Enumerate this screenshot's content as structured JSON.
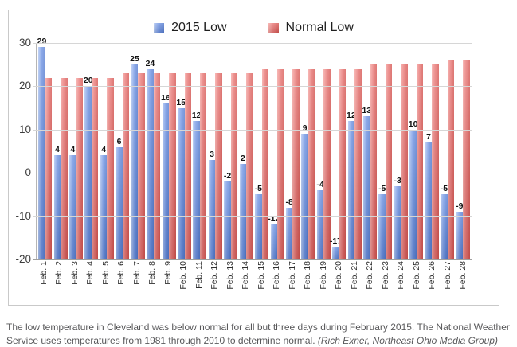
{
  "colors": {
    "blue_series": "#6f94e4",
    "blue_light_edge": "#b0c6f2",
    "blue_dark_edge": "#5279ce",
    "red_series": "#e4716e",
    "red_light_edge": "#f6a5a2",
    "red_dark_edge": "#d5534f",
    "gridline": "#d6d6d6",
    "axis_line": "#a0a0a0",
    "caption_text": "#58585a",
    "chart_border": "#c9c9c9"
  },
  "chart_data": {
    "type": "bar",
    "title": "",
    "categories": [
      "Feb. 1",
      "Feb. 2",
      "Feb. 3",
      "Feb. 4",
      "Feb. 5",
      "Feb. 6",
      "Feb. 7",
      "Feb. 8",
      "Feb. 9",
      "Feb. 10",
      "Feb. 11",
      "Feb. 12",
      "Feb. 13",
      "Feb. 14",
      "Feb. 15",
      "Feb. 16",
      "Feb. 17",
      "Feb. 18",
      "Feb. 19",
      "Feb. 20",
      "Feb. 21",
      "Feb. 22",
      "Feb. 23",
      "Feb. 24",
      "Feb. 25",
      "Feb. 26",
      "Feb. 27",
      "Feb. 28"
    ],
    "series": [
      {
        "name": "2015 Low",
        "color": "#6f94e4",
        "labels_shown": true,
        "values": [
          29,
          4,
          4,
          20,
          4,
          6,
          25,
          24,
          16,
          15,
          12,
          3,
          -2,
          2,
          -5,
          -12,
          -8,
          9,
          -4,
          -17,
          12,
          13,
          -5,
          -3,
          10,
          7,
          -5,
          -9
        ]
      },
      {
        "name": "Normal Low",
        "color": "#e4716e",
        "labels_shown": false,
        "values": [
          22,
          22,
          22,
          22,
          22,
          23,
          23,
          23,
          23,
          23,
          23,
          23,
          23,
          23,
          24,
          24,
          24,
          24,
          24,
          24,
          24,
          25,
          25,
          25,
          25,
          25,
          26,
          26
        ]
      }
    ],
    "ylim": [
      -20,
      30
    ],
    "yticks": [
      30,
      20,
      10,
      0,
      -10,
      -20
    ],
    "bar_base": -20,
    "grid": true,
    "legend_position": "top-center",
    "xlabel": "",
    "ylabel": ""
  },
  "caption": {
    "text": "The low temperature in Cleveland was below normal for all but three days during February 2015. The National Weather Service uses temperatures from 1981 through 2010 to determine normal. ",
    "credit": "(Rich Exner, Northeast Ohio Media Group)"
  }
}
